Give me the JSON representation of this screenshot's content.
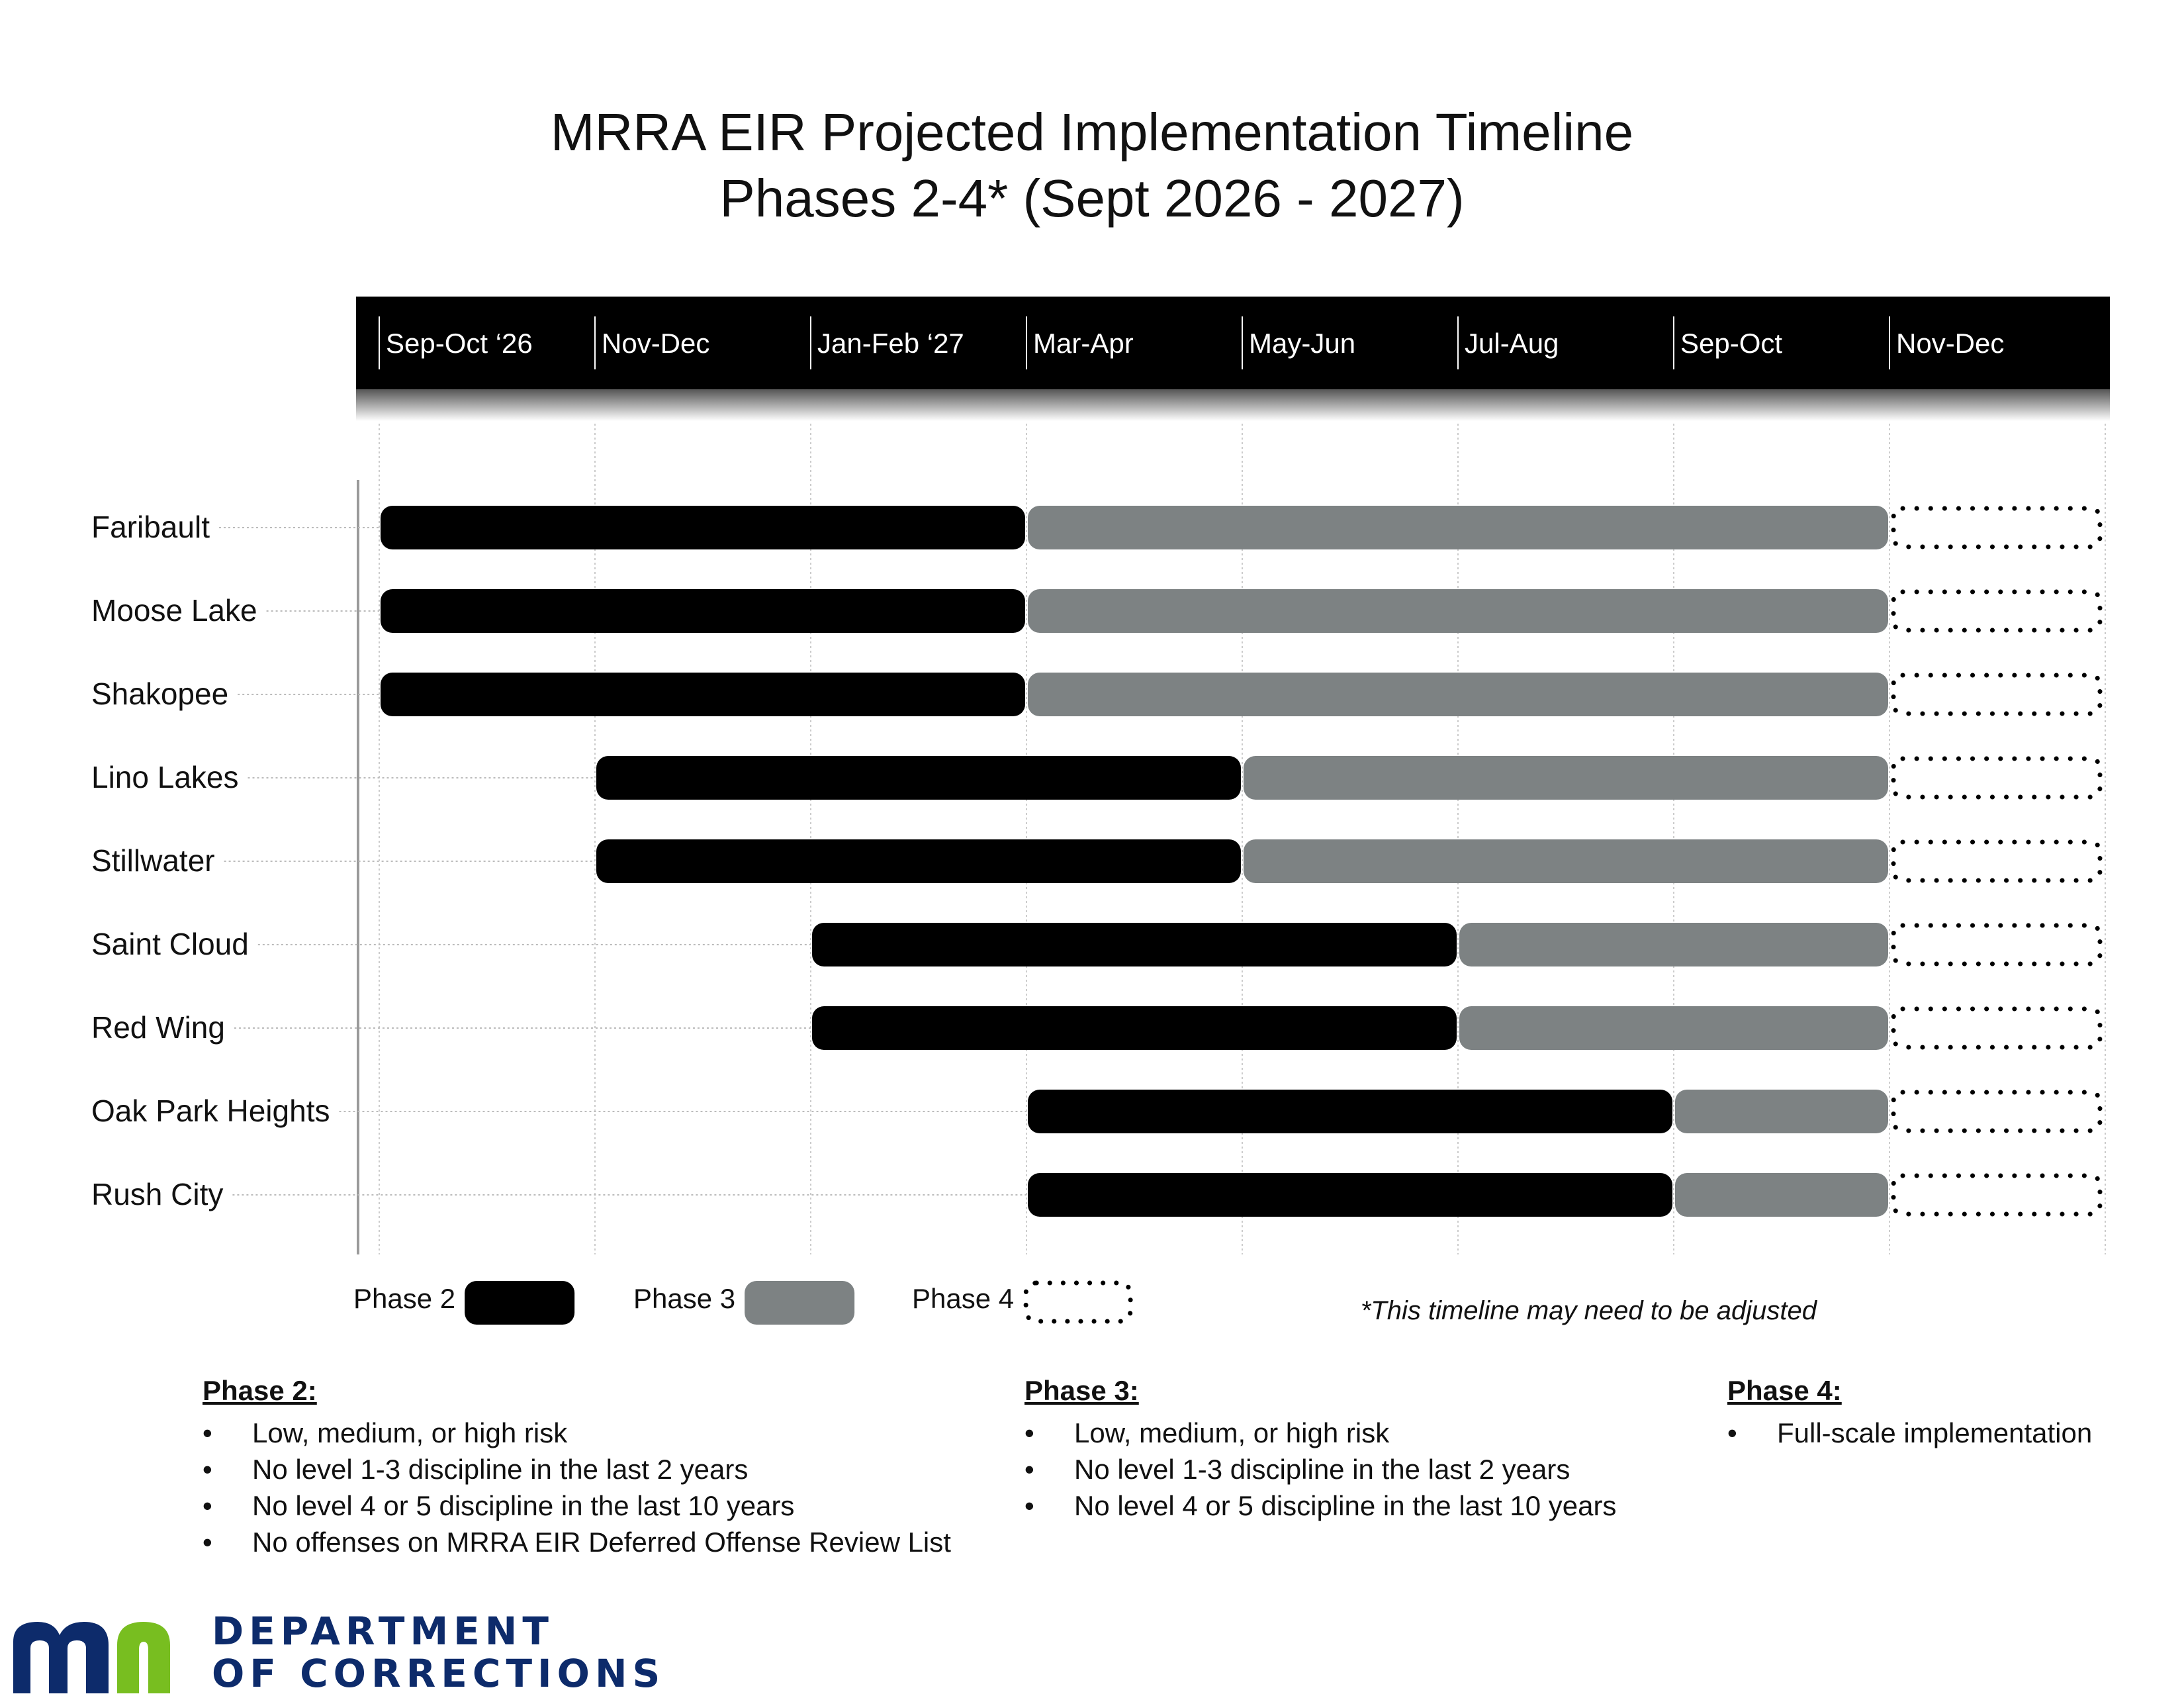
{
  "chart_data": {
    "type": "gantt",
    "title": "MRRA EIR Projected Implementation Timeline",
    "subtitle": "Phases 2-4* (Sept 2026 - 2027)",
    "periods": [
      "Sep-Oct ‘26",
      "Nov-Dec",
      "Jan-Feb ‘27",
      "Mar-Apr",
      "May-Jun",
      "Jul-Aug",
      "Sep-Oct",
      "Nov-Dec"
    ],
    "rows": [
      {
        "name": "Faribault",
        "phase2": [
          0,
          3
        ],
        "phase3": [
          3,
          7
        ],
        "phase4": [
          7,
          8
        ]
      },
      {
        "name": "Moose Lake",
        "phase2": [
          0,
          3
        ],
        "phase3": [
          3,
          7
        ],
        "phase4": [
          7,
          8
        ]
      },
      {
        "name": "Shakopee",
        "phase2": [
          0,
          3
        ],
        "phase3": [
          3,
          7
        ],
        "phase4": [
          7,
          8
        ]
      },
      {
        "name": "Lino Lakes",
        "phase2": [
          1,
          4
        ],
        "phase3": [
          4,
          7
        ],
        "phase4": [
          7,
          8
        ]
      },
      {
        "name": "Stillwater",
        "phase2": [
          1,
          4
        ],
        "phase3": [
          4,
          7
        ],
        "phase4": [
          7,
          8
        ]
      },
      {
        "name": "Saint Cloud",
        "phase2": [
          2,
          5
        ],
        "phase3": [
          5,
          7
        ],
        "phase4": [
          7,
          8
        ]
      },
      {
        "name": "Red Wing",
        "phase2": [
          2,
          5
        ],
        "phase3": [
          5,
          7
        ],
        "phase4": [
          7,
          8
        ]
      },
      {
        "name": "Oak Park Heights",
        "phase2": [
          3,
          6
        ],
        "phase3": [
          6,
          7
        ],
        "phase4": [
          7,
          8
        ]
      },
      {
        "name": "Rush City",
        "phase2": [
          3,
          6
        ],
        "phase3": [
          6,
          7
        ],
        "phase4": [
          7,
          8
        ]
      }
    ],
    "legend": [
      {
        "label": "Phase 2",
        "style": "solid",
        "color": "#000000"
      },
      {
        "label": "Phase 3",
        "style": "solid",
        "color": "#7d8283"
      },
      {
        "label": "Phase 4",
        "style": "dotted",
        "color": "#000000"
      }
    ],
    "note": "*This timeline may need to be adjusted"
  },
  "phases": [
    {
      "title": "Phase 2:",
      "items": [
        "Low, medium, or high risk",
        "No level 1-3 discipline in the last 2 years",
        "No level 4 or 5 discipline in the last 10 years",
        "No offenses on MRRA EIR Deferred Offense Review List"
      ]
    },
    {
      "title": "Phase 3:",
      "items": [
        "Low, medium, or high risk",
        "No level 1-3 discipline in the last 2 years",
        "No level 4 or 5 discipline in the last 10 years"
      ]
    },
    {
      "title": "Phase 4:",
      "items": [
        "Full-scale implementation"
      ]
    }
  ],
  "logo": {
    "line1": "DEPARTMENT",
    "line2": "OF CORRECTIONS",
    "colors": {
      "navy": "#0d2b6b",
      "green": "#78be20"
    }
  }
}
